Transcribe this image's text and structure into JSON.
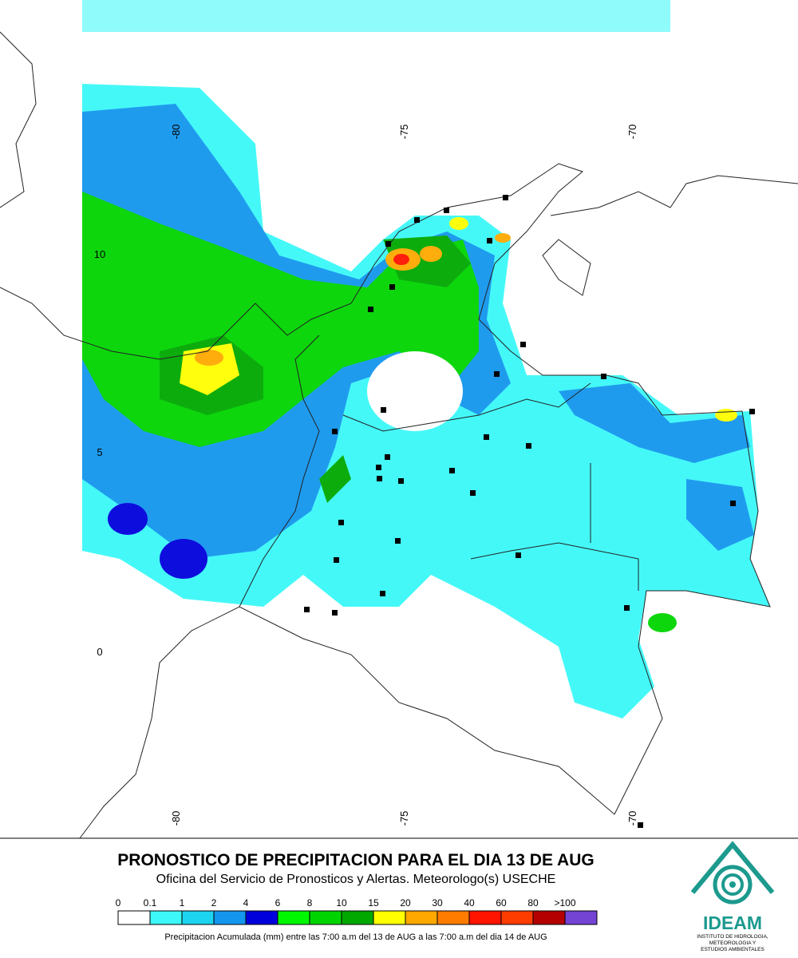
{
  "map": {
    "graticule_labels": [
      {
        "text": "-80",
        "pos": "top"
      },
      {
        "text": "-75",
        "pos": "top"
      },
      {
        "text": "-70",
        "pos": "top"
      },
      {
        "text": "10",
        "pos": "left"
      },
      {
        "text": "5",
        "pos": "left"
      },
      {
        "text": "0",
        "pos": "left"
      },
      {
        "text": "-80",
        "pos": "bottom"
      },
      {
        "text": "-75",
        "pos": "bottom"
      },
      {
        "text": "-70",
        "pos": "bottom"
      }
    ]
  },
  "header": {
    "title": "PRONOSTICO DE PRECIPITACION PARA EL DIA 13 DE AUG",
    "subtitle": "Oficina del Servicio de Pronosticos y Alertas. Meteorologo(s) USECHE"
  },
  "legend": {
    "items": [
      {
        "label": "0",
        "color": "#ffffff"
      },
      {
        "label": "0.1",
        "color": "#3cf8f8"
      },
      {
        "label": "1",
        "color": "#1cd4f0"
      },
      {
        "label": "2",
        "color": "#1496ee"
      },
      {
        "label": "4",
        "color": "#0000dc"
      },
      {
        "label": "6",
        "color": "#00f800"
      },
      {
        "label": "8",
        "color": "#00d400"
      },
      {
        "label": "10",
        "color": "#00a800"
      },
      {
        "label": "15",
        "color": "#ffff00"
      },
      {
        "label": "20",
        "color": "#ffa800"
      },
      {
        "label": "30",
        "color": "#ff7c00"
      },
      {
        "label": "40",
        "color": "#ff1400"
      },
      {
        "label": "60",
        "color": "#ff3c00"
      },
      {
        "label": "80",
        "color": "#b40000"
      },
      {
        "label": ">100",
        "color": "#7444d4"
      }
    ],
    "caption": "Precipitacion Acumulada (mm) entre las 7:00 a.m del 13 de AUG a las 7:00 a.m del dia 14 de AUG"
  },
  "logo": {
    "name": "IDEAM",
    "subtitle": [
      "INSTITUTO DE HIDROLOGIA,",
      "METEOROLOGIA Y",
      "ESTUDIOS AMBIENTALES"
    ]
  }
}
